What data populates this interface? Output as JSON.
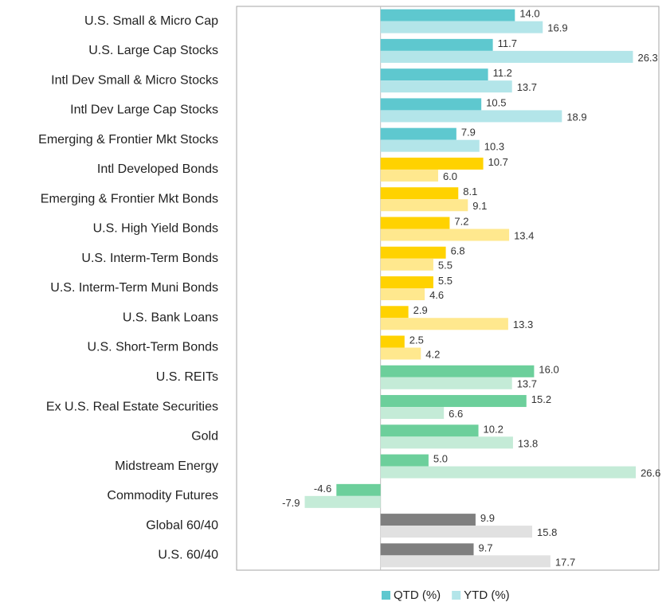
{
  "chart_data": {
    "type": "hbar",
    "categories": [
      "U.S. Small & Micro Cap",
      "U.S. Large Cap Stocks",
      "Intl Dev Small & Micro Stocks",
      "Intl Dev Large Cap Stocks",
      "Emerging & Frontier Mkt Stocks",
      "Intl Developed Bonds",
      "Emerging & Frontier Mkt Bonds",
      "U.S. High Yield Bonds",
      "U.S. Interm-Term Bonds",
      "U.S. Interm-Term Muni Bonds",
      "U.S. Bank Loans",
      "U.S. Short-Term Bonds",
      "U.S. REITs",
      "Ex U.S. Real Estate Securities",
      "Gold",
      "Midstream Energy",
      "Commodity Futures",
      "Global 60/40",
      "U.S. 60/40"
    ],
    "series": [
      {
        "name": "QTD (%)",
        "color": "#5ec8cf",
        "values": [
          14.0,
          11.7,
          11.2,
          10.5,
          7.9,
          10.7,
          8.1,
          7.2,
          6.8,
          5.5,
          2.9,
          2.5,
          16.0,
          15.2,
          10.2,
          5.0,
          -4.6,
          9.9,
          9.7
        ],
        "value_labels": [
          "14.0",
          "11.7",
          "11.2",
          "10.5",
          "7.9",
          "10.7",
          "8.1",
          "7.2",
          "6.8",
          "5.5",
          "2.9",
          "2.5",
          "16.0",
          "15.2",
          "10.2",
          "5.0",
          "-4.6",
          "9.9",
          "9.7"
        ],
        "colors": [
          "#5ec8cf",
          "#5ec8cf",
          "#5ec8cf",
          "#5ec8cf",
          "#5ec8cf",
          "#ffd200",
          "#ffd200",
          "#ffd200",
          "#ffd200",
          "#ffd200",
          "#ffd200",
          "#ffd200",
          "#6ccf9b",
          "#6ccf9b",
          "#6ccf9b",
          "#6ccf9b",
          "#6ccf9b",
          "#7f7f7f",
          "#7f7f7f"
        ]
      },
      {
        "name": "YTD (%)",
        "color": "#b3e5e9",
        "values": [
          16.9,
          26.3,
          13.7,
          18.9,
          10.3,
          6.0,
          9.1,
          13.4,
          5.5,
          4.6,
          13.3,
          4.2,
          13.7,
          6.6,
          13.8,
          26.6,
          -7.9,
          15.8,
          17.7
        ],
        "value_labels": [
          "16.9",
          "26.3",
          "13.7",
          "18.9",
          "10.3",
          "6.0",
          "9.1",
          "13.4",
          "5.5",
          "4.6",
          "13.3",
          "4.2",
          "13.7",
          "6.6",
          "13.8",
          "26.6",
          "-7.9",
          "15.8",
          "17.7"
        ],
        "colors": [
          "#b3e5e9",
          "#b3e5e9",
          "#b3e5e9",
          "#b3e5e9",
          "#b3e5e9",
          "#ffe88e",
          "#ffe88e",
          "#ffe88e",
          "#ffe88e",
          "#ffe88e",
          "#ffe88e",
          "#ffe88e",
          "#c4ebd7",
          "#c4ebd7",
          "#c4ebd7",
          "#c4ebd7",
          "#c4ebd7",
          "#e1e1e1",
          "#e1e1e1"
        ]
      }
    ],
    "xlim": [
      -15,
      29
    ],
    "legend": "bottom"
  }
}
